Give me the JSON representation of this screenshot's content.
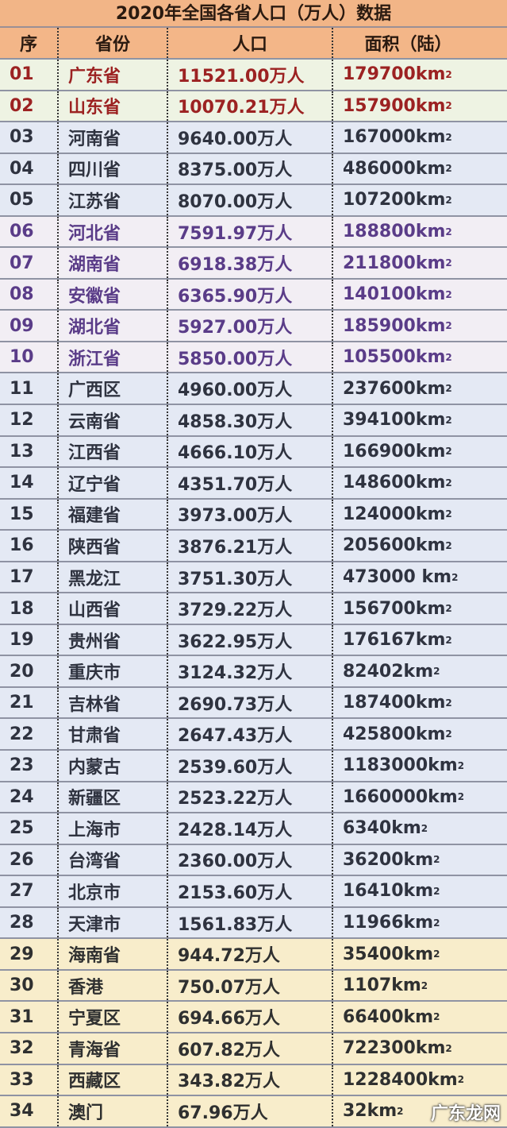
{
  "title": "2020年全国各省人口（万人）数据",
  "headers": [
    "序",
    "省份",
    "人口",
    "面积（陆）"
  ],
  "colors": {
    "header_bg": "#f2b587",
    "top_text": "#9c2222",
    "purple_text": "#5a3c88",
    "blue_bg": "#e4e9f4",
    "yellow_bg": "#f8edcb"
  },
  "rows": [
    {
      "no": "01",
      "name": "广东省",
      "pop": "11521.00万人",
      "area": "179700km",
      "group": "top"
    },
    {
      "no": "02",
      "name": "山东省",
      "pop": "10070.21万人",
      "area": "157900km",
      "group": "top"
    },
    {
      "no": "03",
      "name": "河南省",
      "pop": "9640.00万人",
      "area": "167000km",
      "group": "blue"
    },
    {
      "no": "04",
      "name": "四川省",
      "pop": "8375.00万人",
      "area": "486000km",
      "group": "blue"
    },
    {
      "no": "05",
      "name": "江苏省",
      "pop": "8070.00万人",
      "area": "107200km",
      "group": "blue"
    },
    {
      "no": "06",
      "name": "河北省",
      "pop": "7591.97万人",
      "area": "188800km",
      "group": "purple"
    },
    {
      "no": "07",
      "name": "湖南省",
      "pop": "6918.38万人",
      "area": "211800km",
      "group": "purple"
    },
    {
      "no": "08",
      "name": "安徽省",
      "pop": "6365.90万人",
      "area": "140100km",
      "group": "purple"
    },
    {
      "no": "09",
      "name": "湖北省",
      "pop": "5927.00万人",
      "area": "185900km",
      "group": "purple"
    },
    {
      "no": "10",
      "name": "浙江省",
      "pop": "5850.00万人",
      "area": "105500km",
      "group": "purple"
    },
    {
      "no": "11",
      "name": "广西区",
      "pop": "4960.00万人",
      "area": "237600km",
      "group": "blue"
    },
    {
      "no": "12",
      "name": "云南省",
      "pop": "4858.30万人",
      "area": "394100km",
      "group": "blue"
    },
    {
      "no": "13",
      "name": "江西省",
      "pop": "4666.10万人",
      "area": "166900km",
      "group": "blue"
    },
    {
      "no": "14",
      "name": "辽宁省",
      "pop": "4351.70万人",
      "area": "148600km",
      "group": "blue"
    },
    {
      "no": "15",
      "name": "福建省",
      "pop": "3973.00万人",
      "area": "124000km",
      "group": "blue"
    },
    {
      "no": "16",
      "name": "陕西省",
      "pop": "3876.21万人",
      "area": "205600km",
      "group": "blue"
    },
    {
      "no": "17",
      "name": "黑龙江",
      "pop": "3751.30万人",
      "area": "473000 km",
      "group": "blue"
    },
    {
      "no": "18",
      "name": "山西省",
      "pop": "3729.22万人",
      "area": "156700km",
      "group": "blue"
    },
    {
      "no": "19",
      "name": "贵州省",
      "pop": "3622.95万人",
      "area": "176167km",
      "group": "blue"
    },
    {
      "no": "20",
      "name": "重庆市",
      "pop": "3124.32万人",
      "area": "82402km",
      "group": "blue"
    },
    {
      "no": "21",
      "name": "吉林省",
      "pop": "2690.73万人",
      "area": "187400km",
      "group": "blue"
    },
    {
      "no": "22",
      "name": "甘肃省",
      "pop": "2647.43万人",
      "area": "425800km",
      "group": "blue"
    },
    {
      "no": "23",
      "name": "内蒙古",
      "pop": "2539.60万人",
      "area": "1183000km",
      "group": "blue"
    },
    {
      "no": "24",
      "name": "新疆区",
      "pop": "2523.22万人",
      "area": "1660000km",
      "group": "blue"
    },
    {
      "no": "25",
      "name": "上海市",
      "pop": "2428.14万人",
      "area": "6340km",
      "group": "blue"
    },
    {
      "no": "26",
      "name": "台湾省",
      "pop": "2360.00万人",
      "area": "36200km",
      "group": "blue"
    },
    {
      "no": "27",
      "name": "北京市",
      "pop": "2153.60万人",
      "area": "16410km",
      "group": "blue"
    },
    {
      "no": "28",
      "name": "天津市",
      "pop": "1561.83万人",
      "area": "11966km",
      "group": "blue"
    },
    {
      "no": "29",
      "name": "海南省",
      "pop": "944.72万人",
      "area": "35400km",
      "group": "yellow"
    },
    {
      "no": "30",
      "name": "香港",
      "pop": "750.07万人",
      "area": "1107km",
      "group": "yellow"
    },
    {
      "no": "31",
      "name": "宁夏区",
      "pop": "694.66万人",
      "area": "66400km",
      "group": "yellow"
    },
    {
      "no": "32",
      "name": "青海省",
      "pop": "607.82万人",
      "area": "722300km",
      "group": "yellow"
    },
    {
      "no": "33",
      "name": "西藏区",
      "pop": "343.82万人",
      "area": "1228400km",
      "group": "yellow"
    },
    {
      "no": "34",
      "name": "澳门",
      "pop": "67.96万人",
      "area": "32km",
      "group": "yellow"
    }
  ],
  "area_unit_sup": "2",
  "watermark": "广东龙网"
}
